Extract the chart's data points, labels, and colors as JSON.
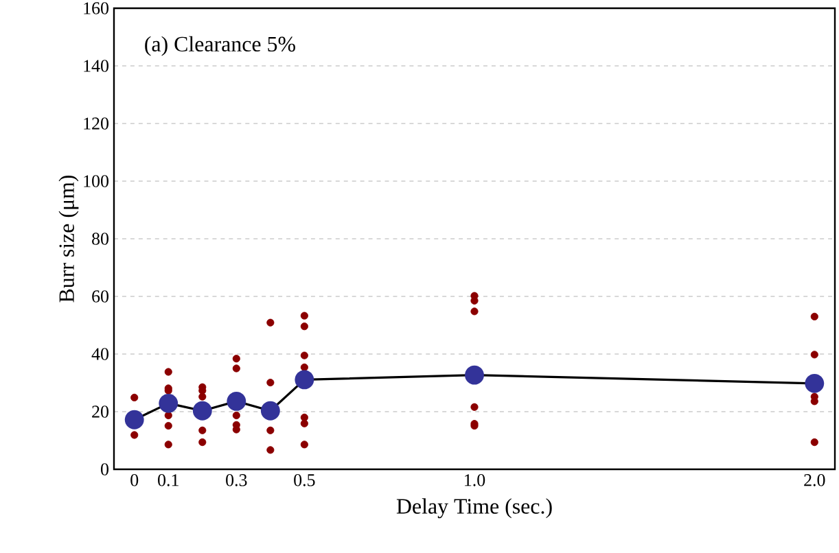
{
  "chart_data": {
    "type": "line",
    "xlabel": "Delay Time (sec.)",
    "ylabel": "Burr size (μm)",
    "annotations": [
      "(a)  Clearance  5%"
    ],
    "xlim": [
      -0.06,
      2.06
    ],
    "xticks": [
      0,
      0.1,
      0.3,
      0.5,
      {
        "value": 1.0,
        "label": "1.0"
      },
      {
        "value": 2.0,
        "label": "2.0"
      }
    ],
    "ylim": [
      0,
      160
    ],
    "yticks": [
      0,
      20,
      40,
      60,
      80,
      100,
      120,
      140,
      160
    ],
    "grid": "y",
    "series": [
      {
        "type": "scatter",
        "color": "#8b0000",
        "marker": "circle",
        "x": [
          0,
          0,
          0.1,
          0.1,
          0.1,
          0.1,
          0.1,
          0.1,
          0.2,
          0.2,
          0.2,
          0.2,
          0.2,
          0.3,
          0.3,
          0.3,
          0.3,
          0.3,
          0.4,
          0.4,
          0.4,
          0.4,
          0.5,
          0.5,
          0.5,
          0.5,
          0.5,
          0.5,
          0.5,
          1.0,
          1.0,
          1.0,
          1.0,
          1.0,
          1.0,
          2.0,
          2.0,
          2.0,
          2.0,
          2.0
        ],
        "values": [
          24.9,
          11.9,
          33.8,
          28.1,
          27.3,
          18.7,
          15.1,
          8.6,
          28.5,
          27.3,
          25.2,
          13.5,
          9.4,
          38.4,
          35.0,
          18.7,
          15.4,
          13.8,
          50.9,
          30.1,
          13.5,
          6.7,
          53.3,
          49.6,
          39.5,
          35.4,
          18.0,
          15.9,
          8.6,
          60.2,
          58.5,
          54.8,
          21.6,
          15.8,
          15.1,
          53.0,
          39.8,
          25.2,
          23.6,
          9.4
        ]
      },
      {
        "color": "#333399",
        "marker": "circle",
        "line_style": "solid",
        "x": [
          0,
          0.1,
          0.2,
          0.3,
          0.4,
          0.5,
          1.0,
          2.0
        ],
        "values": [
          17.2,
          22.9,
          20.3,
          23.6,
          20.3,
          31.1,
          32.7,
          29.8
        ]
      }
    ]
  }
}
